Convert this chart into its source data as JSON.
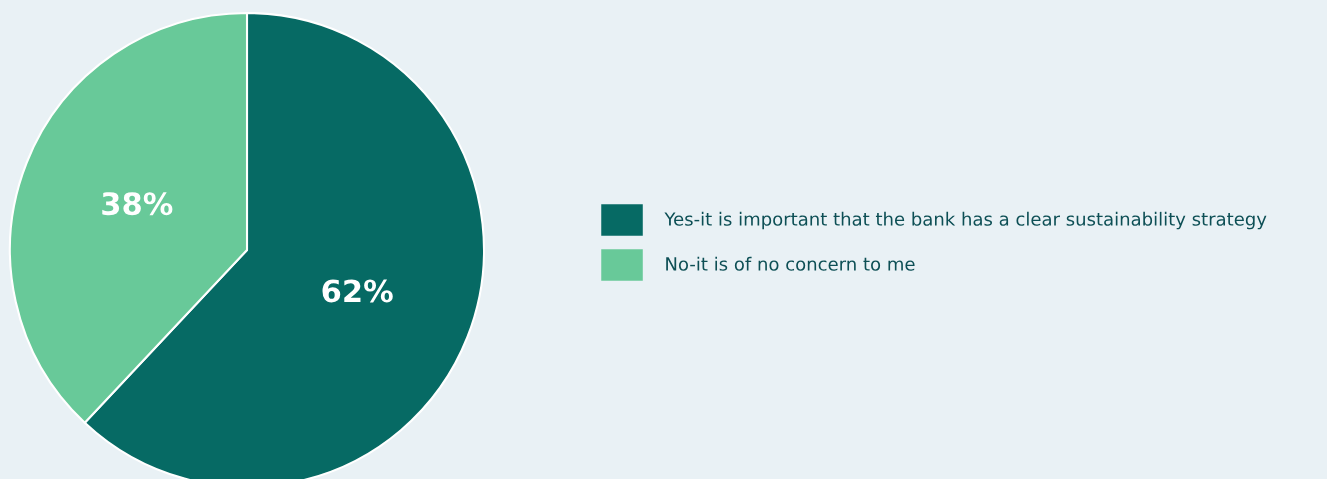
{
  "chart_data": {
    "type": "pie",
    "categories": [
      "Yes-it is important that the bank has a clear sustainability strategy",
      "No-it is of no concern to me"
    ],
    "values": [
      62,
      38
    ],
    "colors": [
      "#066a64",
      "#68c999"
    ],
    "value_labels": [
      "62%",
      "38%"
    ],
    "legend": "right"
  }
}
